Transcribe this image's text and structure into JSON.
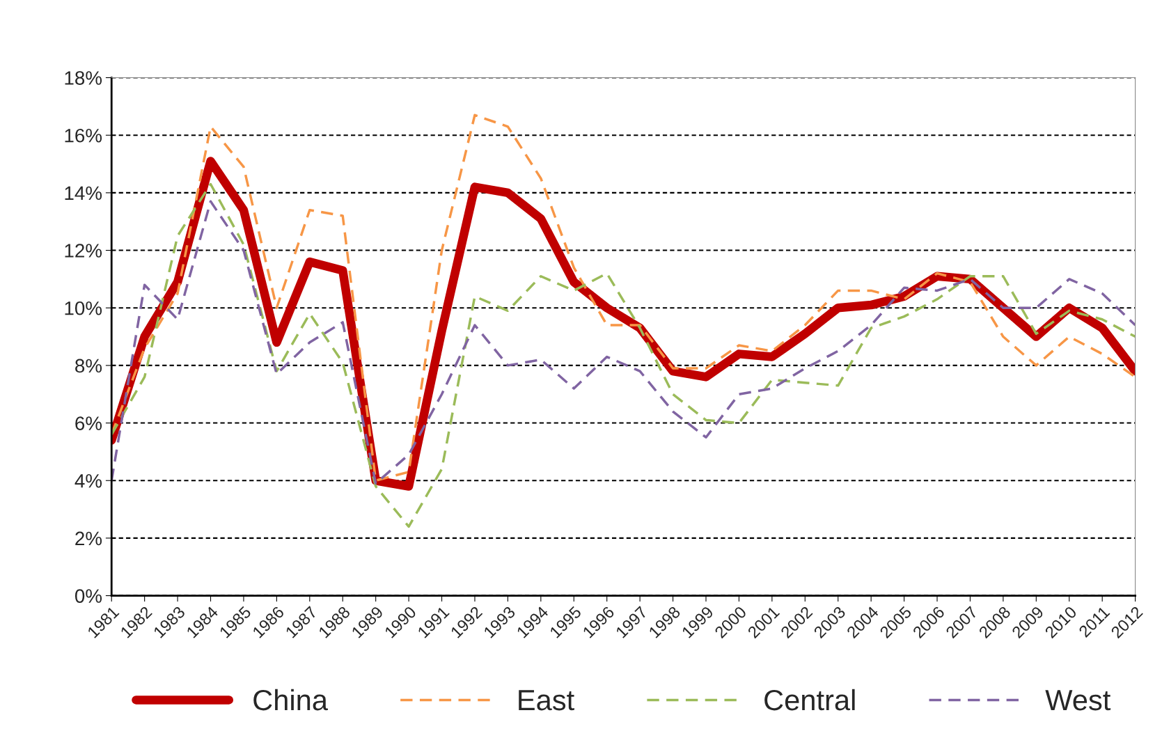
{
  "chart_data": {
    "type": "line",
    "categories": [
      "1981",
      "1982",
      "1983",
      "1984",
      "1985",
      "1986",
      "1987",
      "1988",
      "1989",
      "1990",
      "1991",
      "1992",
      "1993",
      "1994",
      "1995",
      "1996",
      "1997",
      "1998",
      "1999",
      "2000",
      "2001",
      "2002",
      "2003",
      "2004",
      "2005",
      "2006",
      "2007",
      "2008",
      "2009",
      "2010",
      "2011",
      "2012"
    ],
    "series": [
      {
        "name": "China",
        "color": "#c00000",
        "line_style": "solid",
        "values": [
          5.4,
          9.0,
          10.9,
          15.1,
          13.4,
          8.8,
          11.6,
          11.3,
          4.0,
          3.8,
          9.2,
          14.2,
          14.0,
          13.1,
          10.9,
          10.0,
          9.3,
          7.8,
          7.6,
          8.4,
          8.3,
          9.1,
          10.0,
          10.1,
          10.4,
          11.1,
          11.0,
          10.0,
          9.0,
          10.0,
          9.3,
          7.8
        ]
      },
      {
        "name": "East",
        "color": "#f79646",
        "line_style": "dashed",
        "values": [
          5.6,
          8.6,
          10.5,
          16.3,
          14.9,
          10.0,
          13.4,
          13.2,
          4.0,
          4.3,
          12.0,
          16.7,
          16.3,
          14.5,
          11.4,
          9.4,
          9.4,
          7.9,
          7.9,
          8.7,
          8.5,
          9.4,
          10.6,
          10.6,
          10.3,
          11.2,
          10.9,
          9.0,
          8.0,
          9.0,
          8.4,
          7.6
        ]
      },
      {
        "name": "Central",
        "color": "#9bbb59",
        "line_style": "dashed",
        "values": [
          5.6,
          7.6,
          12.5,
          14.3,
          12.2,
          7.8,
          9.8,
          8.1,
          3.8,
          2.4,
          4.4,
          10.4,
          9.9,
          11.1,
          10.6,
          11.2,
          9.3,
          7.0,
          6.1,
          6.0,
          7.5,
          7.4,
          7.3,
          9.3,
          9.7,
          10.3,
          11.1,
          11.1,
          9.1,
          9.9,
          9.6,
          9.0
        ]
      },
      {
        "name": "West",
        "color": "#8064a2",
        "line_style": "dashed",
        "values": [
          4.0,
          10.8,
          9.6,
          13.7,
          12.0,
          7.7,
          8.8,
          9.5,
          3.9,
          4.9,
          7.0,
          9.4,
          8.0,
          8.2,
          7.2,
          8.3,
          7.8,
          6.4,
          5.5,
          7.0,
          7.2,
          7.9,
          8.5,
          9.4,
          10.7,
          10.6,
          11.0,
          10.0,
          10.0,
          11.0,
          10.5,
          9.4
        ]
      }
    ],
    "ylim": [
      0,
      18
    ],
    "yticks": [
      {
        "value": 0,
        "label": "0%"
      },
      {
        "value": 2,
        "label": "2%"
      },
      {
        "value": 4,
        "label": "4%"
      },
      {
        "value": 6,
        "label": "6%"
      },
      {
        "value": 8,
        "label": "8%"
      },
      {
        "value": 10,
        "label": "10%"
      },
      {
        "value": 12,
        "label": "12%"
      },
      {
        "value": 14,
        "label": "14%"
      },
      {
        "value": 16,
        "label": "16%"
      },
      {
        "value": 18,
        "label": "18%"
      }
    ],
    "grid": "y",
    "legend": "bottom"
  }
}
